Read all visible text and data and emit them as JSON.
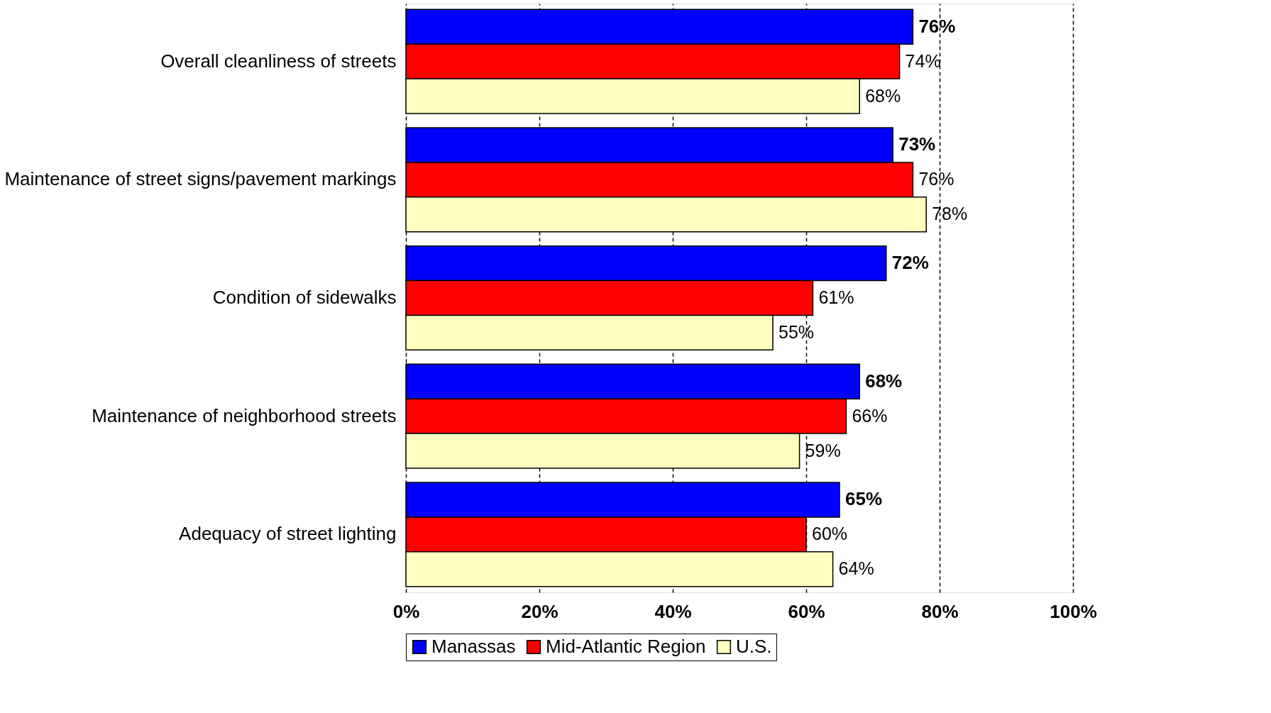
{
  "chart_data": {
    "type": "bar",
    "orientation": "horizontal",
    "categories": [
      "Overall cleanliness of streets",
      "Maintenance of street signs/pavement markings",
      "Condition of sidewalks",
      "Maintenance of neighborhood streets",
      "Adequacy of street lighting"
    ],
    "series": [
      {
        "name": "Manassas",
        "color": "#0000ff",
        "values": [
          76,
          73,
          72,
          68,
          65
        ],
        "value_labels": [
          "76%",
          "73%",
          "72%",
          "68%",
          "65%"
        ]
      },
      {
        "name": "Mid-Atlantic Region",
        "color": "#ff0000",
        "values": [
          74,
          76,
          61,
          66,
          60
        ],
        "value_labels": [
          "74%",
          "76%",
          "61%",
          "66%",
          "60%"
        ]
      },
      {
        "name": "U.S.",
        "color": "#ffffc0",
        "values": [
          68,
          78,
          55,
          59,
          64
        ],
        "value_labels": [
          "68%",
          "78%",
          "55%",
          "59%",
          "64%"
        ]
      }
    ],
    "xlim": [
      0,
      100
    ],
    "xticks": [
      {
        "value": 0,
        "label": "0%"
      },
      {
        "value": 20,
        "label": "20%"
      },
      {
        "value": 40,
        "label": "40%"
      },
      {
        "value": 60,
        "label": "60%"
      },
      {
        "value": 80,
        "label": "80%"
      },
      {
        "value": 100,
        "label": "100%"
      }
    ],
    "grid": "x",
    "legend": "bottom"
  }
}
